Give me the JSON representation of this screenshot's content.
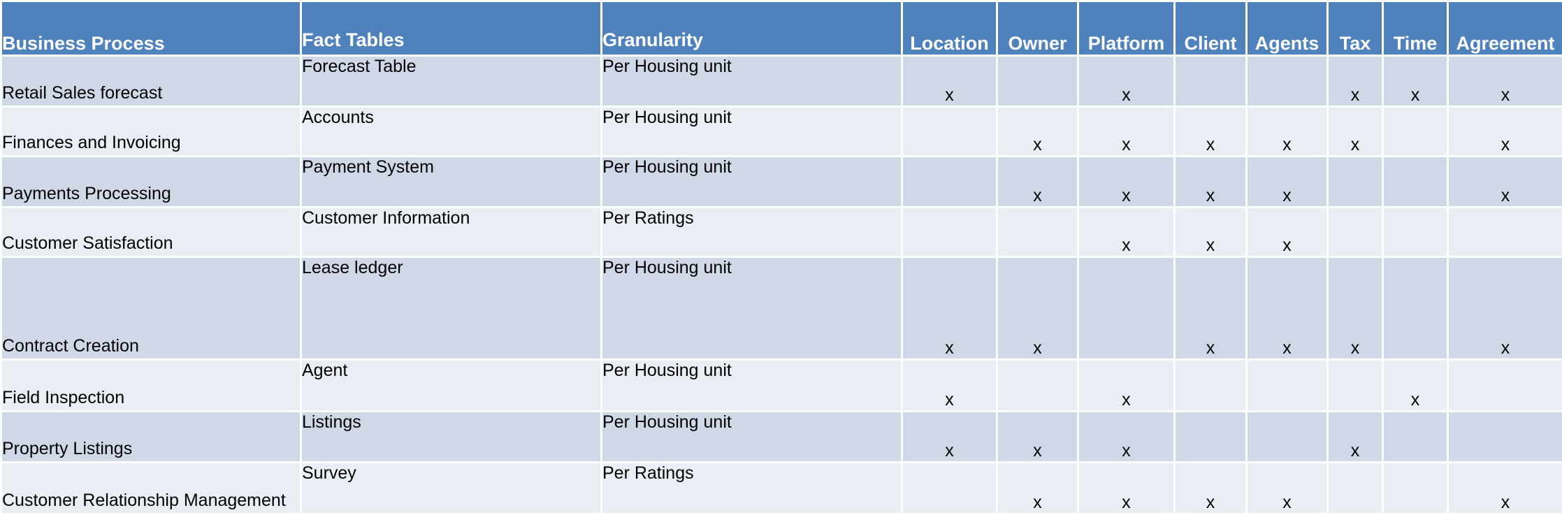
{
  "headers": {
    "process": "Business Process",
    "facts": "Fact Tables",
    "granularity": "Granularity",
    "dims": [
      "Location",
      "Owner",
      "Platform",
      "Client",
      "Agents",
      "Tax",
      "Time",
      "Agreement"
    ]
  },
  "rows": [
    {
      "process": "Retail Sales forecast",
      "fact": "Forecast Table",
      "grain": "Per Housing unit",
      "marks": [
        "x",
        "",
        "x",
        "",
        "",
        "x",
        "x",
        "x"
      ]
    },
    {
      "process": "Finances and Invoicing",
      "fact": "Accounts",
      "grain": "Per Housing unit",
      "marks": [
        "",
        "x",
        "x",
        "x",
        "x",
        "x",
        "",
        "x"
      ]
    },
    {
      "process": "Payments Processing",
      "fact": "Payment System",
      "grain": "Per Housing unit",
      "marks": [
        "",
        "x",
        "x",
        "x",
        "x",
        "",
        "",
        "x"
      ]
    },
    {
      "process": "Customer Satisfaction",
      "fact": "Customer Information",
      "grain": "Per Ratings",
      "marks": [
        "",
        "",
        "x",
        "x",
        "x",
        "",
        "",
        ""
      ]
    },
    {
      "process": "Contract Creation",
      "fact": "Lease ledger",
      "grain": "Per Housing unit",
      "marks": [
        "x",
        "x",
        "",
        "x",
        "x",
        "x",
        "",
        "x"
      ]
    },
    {
      "process": "Field Inspection",
      "fact": "Agent",
      "grain": "Per Housing unit",
      "marks": [
        "x",
        "",
        "x",
        "",
        "",
        "",
        "x",
        ""
      ]
    },
    {
      "process": "Property Listings",
      "fact": "Listings",
      "grain": "Per Housing unit",
      "marks": [
        "x",
        "x",
        "x",
        "",
        "",
        "x",
        "",
        ""
      ]
    },
    {
      "process": "Customer Relationship Management",
      "fact": "Survey",
      "grain": "Per Ratings",
      "marks": [
        "",
        "x",
        "x",
        "x",
        "x",
        "",
        "",
        "x"
      ]
    }
  ]
}
